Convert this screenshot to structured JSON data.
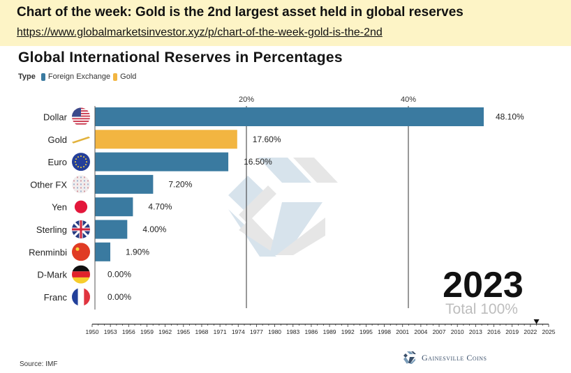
{
  "banner": {
    "title": "Chart of the week: Gold is the 2nd largest asset held in global  reserves",
    "link": "https://www.globalmarketsinvestor.xyz/p/chart-of-the-week-gold-is-the-2nd"
  },
  "colors": {
    "banner_bg": "#fdf4c6",
    "foreign_exchange": "#3a7aa0",
    "gold": "#f2b541"
  },
  "chart_data": {
    "type": "bar",
    "orientation": "horizontal",
    "title": "Global International Reserves in Percentages",
    "legend_title": "Type",
    "legend": [
      {
        "name": "Foreign Exchange",
        "color": "#3a7aa0"
      },
      {
        "name": "Gold",
        "color": "#f2b541"
      }
    ],
    "legend_placement": "top-left",
    "categories": [
      "Dollar",
      "Gold",
      "Euro",
      "Other FX",
      "Yen",
      "Sterling",
      "Renminbi",
      "D-Mark",
      "Franc"
    ],
    "types": [
      "Foreign Exchange",
      "Gold",
      "Foreign Exchange",
      "Foreign Exchange",
      "Foreign Exchange",
      "Foreign Exchange",
      "Foreign Exchange",
      "Foreign Exchange",
      "Foreign Exchange"
    ],
    "icons": [
      "us-flag-icon",
      "gold-bar-icon",
      "eu-flag-icon",
      "other-fx-icon",
      "japan-flag-icon",
      "uk-flag-icon",
      "china-flag-icon",
      "germany-flag-icon",
      "france-flag-icon"
    ],
    "values": [
      48.1,
      17.6,
      16.5,
      7.2,
      4.7,
      4.0,
      1.9,
      0.0,
      0.0
    ],
    "value_labels": [
      "48.10%",
      "17.60%",
      "16.50%",
      "7.20%",
      "4.70%",
      "4.00%",
      "1.90%",
      "0.00%",
      "0.00%"
    ],
    "xlim": [
      0,
      50
    ],
    "gridlines": [
      20,
      40
    ],
    "gridline_labels": [
      "20%",
      "40%"
    ],
    "grid": true,
    "year": "2023",
    "total_label": "Total 100%",
    "timeline": {
      "ticks": [
        "1950",
        "1953",
        "1956",
        "1959",
        "1962",
        "1965",
        "1968",
        "1971",
        "1974",
        "1977",
        "1980",
        "1983",
        "1986",
        "1989",
        "1992",
        "1995",
        "1998",
        "2001",
        "2004",
        "2007",
        "2010",
        "2013",
        "2016",
        "2019",
        "2022",
        "2025"
      ],
      "start": 1950,
      "end": 2025,
      "current": 2023
    }
  },
  "footer": {
    "source": "Source: IMF",
    "brand": "Gainesville Coins"
  }
}
